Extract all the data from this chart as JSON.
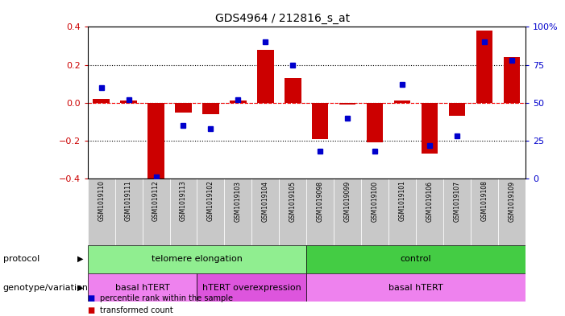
{
  "title": "GDS4964 / 212816_s_at",
  "samples": [
    "GSM1019110",
    "GSM1019111",
    "GSM1019112",
    "GSM1019113",
    "GSM1019102",
    "GSM1019103",
    "GSM1019104",
    "GSM1019105",
    "GSM1019098",
    "GSM1019099",
    "GSM1019100",
    "GSM1019101",
    "GSM1019106",
    "GSM1019107",
    "GSM1019108",
    "GSM1019109"
  ],
  "transformed_count": [
    0.02,
    0.01,
    -0.4,
    -0.05,
    -0.06,
    0.01,
    0.28,
    0.13,
    -0.19,
    -0.01,
    -0.21,
    0.01,
    -0.27,
    -0.07,
    0.38,
    0.24
  ],
  "percentile_rank": [
    60,
    52,
    1,
    35,
    33,
    52,
    90,
    75,
    18,
    40,
    18,
    62,
    22,
    28,
    90,
    78
  ],
  "protocol_groups": [
    {
      "label": "telomere elongation",
      "start": 0,
      "end": 8,
      "color": "#90ee90"
    },
    {
      "label": "control",
      "start": 8,
      "end": 16,
      "color": "#44cc44"
    }
  ],
  "genotype_groups": [
    {
      "label": "basal hTERT",
      "start": 0,
      "end": 4,
      "color": "#ee82ee"
    },
    {
      "label": "hTERT overexpression",
      "start": 4,
      "end": 8,
      "color": "#dd55dd"
    },
    {
      "label": "basal hTERT",
      "start": 8,
      "end": 16,
      "color": "#ee82ee"
    }
  ],
  "bar_color": "#cc0000",
  "dot_color": "#0000cc",
  "ylim_left": [
    -0.4,
    0.4
  ],
  "ylim_right": [
    0,
    100
  ],
  "yticks_left": [
    -0.4,
    -0.2,
    0.0,
    0.2,
    0.4
  ],
  "yticks_right": [
    0,
    25,
    50,
    75,
    100
  ],
  "ytick_labels_right": [
    "0",
    "25",
    "50",
    "75",
    "100%"
  ],
  "grid_values": [
    -0.2,
    0.2
  ],
  "zero_line": 0.0,
  "legend_items": [
    {
      "color": "#cc0000",
      "label": "transformed count"
    },
    {
      "color": "#0000cc",
      "label": "percentile rank within the sample"
    }
  ],
  "background_color": "#ffffff",
  "plot_bg_color": "#ffffff",
  "tick_label_color_left": "#cc0000",
  "tick_label_color_right": "#0000cc",
  "sample_box_color": "#c8c8c8",
  "bar_width": 0.6
}
